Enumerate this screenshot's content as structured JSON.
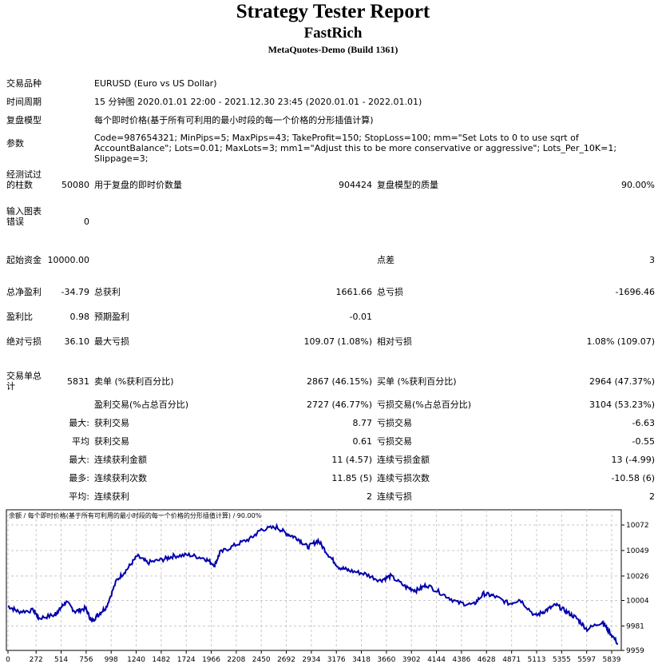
{
  "header": {
    "title": "Strategy Tester Report",
    "ea": "FastRich",
    "server": "MetaQuotes-Demo (Build 1361)"
  },
  "info": [
    {
      "label": "交易品种",
      "value": "EURUSD (Euro vs US Dollar)"
    },
    {
      "label": "时间周期",
      "value": "15 分钟图 2020.01.01 22:00 - 2021.12.30 23:45 (2020.01.01 - 2022.01.01)"
    },
    {
      "label": "复盘模型",
      "value": "每个即时价格(基于所有可利用的最小时段的每一个价格的分形插值计算)"
    },
    {
      "label": "参数",
      "value": "Code=987654321; MinPips=5; MaxPips=43; TakeProfit=150; StopLoss=100; mm=\"Set Lots to 0 to use sqrt of AccountBalance\"; Lots=0.01; MaxLots=3; mm1=\"Adjust this to be more conservative or aggressive\"; Lots_Per_10K=1; Slippage=3;"
    }
  ],
  "stats": [
    {
      "l1": "经测试过的柱数",
      "v1": "50080",
      "l2": "用于复盘的即时价数量",
      "v2": "904424",
      "l3": "复盘模型的质量",
      "v3": "90.00%"
    },
    {
      "l1": "输入图表错误",
      "v1": "0",
      "l2": "",
      "v2": "",
      "l3": "",
      "v3": ""
    },
    {
      "l1": "起始资金",
      "v1": "10000.00",
      "l2": "",
      "v2": "",
      "l3": "点差",
      "v3": "3"
    },
    {
      "l1": "总净盈利",
      "v1": "-34.79",
      "l2": "总获利",
      "v2": "1661.66",
      "l3": "总亏损",
      "v3": "-1696.46"
    },
    {
      "l1": "盈利比",
      "v1": "0.98",
      "l2": "预期盈利",
      "v2": "-0.01",
      "l3": "",
      "v3": ""
    },
    {
      "l1": "绝对亏损",
      "v1": "36.10",
      "l2": "最大亏损",
      "v2": "109.07 (1.08%)",
      "l3": "相对亏损",
      "v3": "1.08% (109.07)"
    },
    {
      "l1": "交易单总计",
      "v1": "5831",
      "l2": "卖单 (%获利百分比)",
      "v2": "2867 (46.15%)",
      "l3": "买单 (%获利百分比)",
      "v3": "2964 (47.37%)"
    },
    {
      "l1": "",
      "v1": "",
      "l2": "盈利交易(%占总百分比)",
      "v2": "2727 (46.77%)",
      "l3": "亏损交易(%占总百分比)",
      "v3": "3104 (53.23%)"
    },
    {
      "l1": "",
      "v1": "最大:",
      "l2": "获利交易",
      "v2": "8.77",
      "l3": "亏损交易",
      "v3": "-6.63"
    },
    {
      "l1": "",
      "v1": "平均",
      "l2": "获利交易",
      "v2": "0.61",
      "l3": "亏损交易",
      "v3": "-0.55"
    },
    {
      "l1": "",
      "v1": "最大:",
      "l2": "连续获利金额",
      "v2": "11 (4.57)",
      "l3": "连续亏损金额",
      "v3": "13 (-4.99)"
    },
    {
      "l1": "",
      "v1": "最多:",
      "l2": "连续获利次数",
      "v2": "11.85 (5)",
      "l3": "连续亏损次数",
      "v3": "-10.58 (6)"
    },
    {
      "l1": "",
      "v1": "平均:",
      "l2": "连续获利",
      "v2": "2",
      "l3": "连续亏损",
      "v3": "2"
    }
  ],
  "chart_data": {
    "type": "line",
    "title": "余额 / 每个即时价格(基于所有可利用的最小时段的每一个价格的分形插值计算) / 90.00%",
    "x_ticks": [
      "0",
      "272",
      "514",
      "756",
      "998",
      "1240",
      "1482",
      "1724",
      "1966",
      "2208",
      "2450",
      "2692",
      "2934",
      "3176",
      "3418",
      "3660",
      "3902",
      "4144",
      "4386",
      "4628",
      "4871",
      "5113",
      "5355",
      "5597",
      "5839"
    ],
    "y_ticks": [
      "10072",
      "10049",
      "10026",
      "10004",
      "9981",
      "9959"
    ],
    "xlim": [
      0,
      5900
    ],
    "ylim": [
      9959,
      10080
    ],
    "color": "#0000aa",
    "series": [
      {
        "name": "余额",
        "x": [
          0,
          100,
          250,
          300,
          450,
          500,
          560,
          650,
          750,
          810,
          870,
          950,
          1050,
          1150,
          1250,
          1350,
          1500,
          1600,
          1750,
          1900,
          2000,
          2050,
          2200,
          2350,
          2450,
          2600,
          2700,
          2800,
          2900,
          3000,
          3100,
          3200,
          3300,
          3450,
          3600,
          3700,
          3850,
          3950,
          4050,
          4200,
          4350,
          4500,
          4600,
          4700,
          4850,
          4950,
          5100,
          5200,
          5300,
          5400,
          5500,
          5600,
          5750,
          5800,
          5900
        ],
        "y": [
          9999,
          9994,
          9995,
          9988,
          9991,
          9996,
          10003,
          9994,
          9997,
          9985,
          9991,
          9998,
          10022,
          10032,
          10044,
          10038,
          10041,
          10044,
          10045,
          10042,
          10036,
          10047,
          10054,
          10060,
          10068,
          10070,
          10064,
          10060,
          10052,
          10058,
          10045,
          10034,
          10031,
          10028,
          10022,
          10026,
          10016,
          10013,
          10018,
          10010,
          10002,
          10000,
          10010,
          10008,
          10001,
          10005,
          9990,
          9995,
          10000,
          9994,
          9988,
          9978,
          9985,
          9978,
          9965
        ]
      }
    ]
  }
}
